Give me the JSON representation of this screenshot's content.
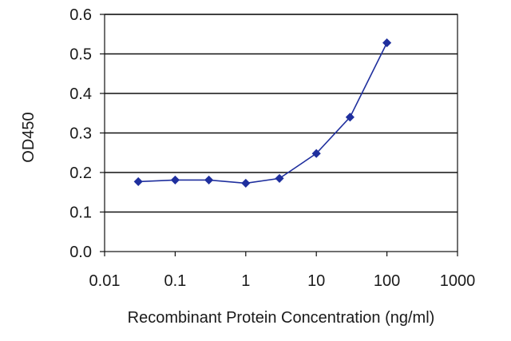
{
  "chart_data": {
    "type": "line",
    "x_scale": "log",
    "xlabel": "Recombinant Protein Concentration (ng/ml)",
    "ylabel": "OD450",
    "xlim": [
      0.01,
      1000
    ],
    "ylim": [
      0,
      0.6
    ],
    "x_ticks": [
      0.01,
      0.1,
      1,
      10,
      100,
      1000
    ],
    "x_tick_labels": [
      "0.01",
      "0.1",
      "1",
      "10",
      "100",
      "1000"
    ],
    "y_ticks": [
      0.0,
      0.1,
      0.2,
      0.3,
      0.4,
      0.5,
      0.6
    ],
    "y_tick_labels": [
      "0.0",
      "0.1",
      "0.2",
      "0.3",
      "0.4",
      "0.5",
      "0.6"
    ],
    "grid": "horizontal",
    "series": [
      {
        "x": [
          0.03,
          0.1,
          0.3,
          1,
          3,
          10,
          30,
          100
        ],
        "y": [
          0.177,
          0.181,
          0.181,
          0.173,
          0.185,
          0.248,
          0.34,
          0.528
        ],
        "color": "#1f2f9e",
        "marker": "diamond"
      }
    ]
  }
}
